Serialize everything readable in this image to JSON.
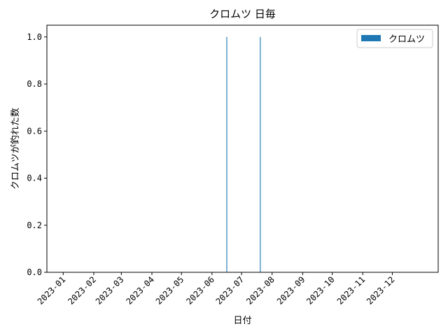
{
  "chart_data": {
    "type": "bar",
    "title": "クロムツ 日毎",
    "xlabel": "日付",
    "ylabel": "クロムツが釣れた数",
    "x_type": "date",
    "xlim": [
      "2023-01-01",
      "2023-12-31"
    ],
    "ylim": [
      0,
      1.05
    ],
    "x_ticks": [
      "2023-01",
      "2023-02",
      "2023-03",
      "2023-04",
      "2023-05",
      "2023-06",
      "2023-07",
      "2023-08",
      "2023-09",
      "2023-10",
      "2023-11",
      "2023-12"
    ],
    "y_ticks": [
      "0.0",
      "0.2",
      "0.4",
      "0.6",
      "0.8",
      "1.0"
    ],
    "grid": false,
    "legend_position": "upper right",
    "series": [
      {
        "name": "クロムツ",
        "color": "#1f77b4",
        "points": [
          {
            "x": "2023-06-16",
            "y": 1
          },
          {
            "x": "2023-07-20",
            "y": 1
          }
        ]
      }
    ]
  }
}
